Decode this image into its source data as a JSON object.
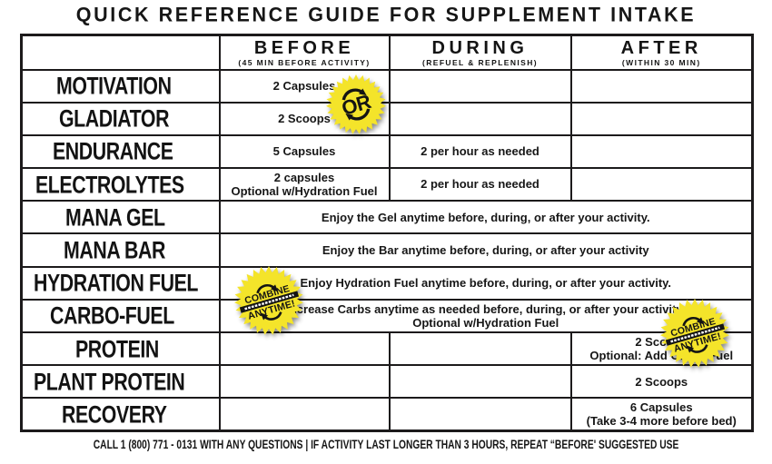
{
  "title": "QUICK REFERENCE GUIDE FOR SUPPLEMENT INTAKE",
  "footer": "CALL 1 (800) 771 - 0131 WITH ANY QUESTIONS | IF ACTIVITY LAST LONGER THAN 3 HOURS, REPEAT “BEFORE' SUGGESTED USE",
  "colors": {
    "highlight": "#f2e727",
    "border": "#1c1a1b",
    "text": "#141414",
    "badge_yellow": "#f4e42a",
    "badge_ink": "#141414"
  },
  "table": {
    "columns": [
      {
        "label": "BEFORE",
        "sub": "(45 MIN BEFORE ACTIVITY)"
      },
      {
        "label": "DURING",
        "sub": "(REFUEL & REPLENISH)"
      },
      {
        "label": "AFTER",
        "sub": "(WITHIN 30 MIN)"
      }
    ],
    "rows": [
      {
        "product": "MOTIVATION",
        "cells": [
          {
            "lines": [
              "2 Capsules"
            ],
            "yellow": true
          },
          {
            "lines": [],
            "yellow": false
          },
          {
            "lines": [],
            "yellow": false
          }
        ]
      },
      {
        "product": "GLADIATOR",
        "cells": [
          {
            "lines": [
              "2 Scoops"
            ],
            "yellow": true
          },
          {
            "lines": [],
            "yellow": false
          },
          {
            "lines": [],
            "yellow": false
          }
        ]
      },
      {
        "product": "ENDURANCE",
        "cells": [
          {
            "lines": [
              "5 Capsules"
            ],
            "yellow": true
          },
          {
            "lines": [
              "2 per hour as needed"
            ],
            "yellow": true
          },
          {
            "lines": [],
            "yellow": false
          }
        ]
      },
      {
        "product": "ELECTROLYTES",
        "cells": [
          {
            "lines": [
              "2 capsules",
              "Optional w/Hydration Fuel"
            ],
            "yellow": true
          },
          {
            "lines": [
              "2 per hour as needed"
            ],
            "yellow": true
          },
          {
            "lines": [],
            "yellow": false
          }
        ]
      },
      {
        "product": "MANA GEL",
        "cells": [
          {
            "span": 3,
            "lines": [
              "Enjoy the Gel anytime before, during, or after your activity."
            ],
            "yellow": true
          }
        ]
      },
      {
        "product": "MANA BAR",
        "cells": [
          {
            "span": 3,
            "lines": [
              "Enjoy the Bar anytime before, during, or after your activity"
            ],
            "yellow": true
          }
        ]
      },
      {
        "product": "HYDRATION FUEL",
        "cells": [
          {
            "span": 3,
            "lines": [
              "Enjoy Hydration Fuel anytime before, during, or after your activity."
            ],
            "yellow": true
          }
        ]
      },
      {
        "product": "CARBO-FUEL",
        "cells": [
          {
            "span": 3,
            "lines": [
              "Increase Carbs anytime as needed before, during, or after your activity.",
              "Optional w/Hydration Fuel"
            ],
            "yellow": true
          }
        ]
      },
      {
        "product": "PROTEIN",
        "cells": [
          {
            "lines": [],
            "yellow": false
          },
          {
            "lines": [],
            "yellow": false
          },
          {
            "lines": [
              "2 Scoops",
              "Optional: Add Carbo-Fuel"
            ],
            "yellow": true
          }
        ]
      },
      {
        "product": "PLANT PROTEIN",
        "cells": [
          {
            "lines": [],
            "yellow": false
          },
          {
            "lines": [],
            "yellow": false
          },
          {
            "lines": [
              "2 Scoops"
            ],
            "yellow": true
          }
        ]
      },
      {
        "product": "RECOVERY",
        "cells": [
          {
            "lines": [],
            "yellow": false
          },
          {
            "lines": [],
            "yellow": false
          },
          {
            "lines": [
              "6 Capsules",
              "(Take 3-4 more before bed)"
            ],
            "yellow": true
          }
        ]
      }
    ]
  },
  "badges": [
    {
      "name": "or-badge",
      "type": "or",
      "text": "OR"
    },
    {
      "name": "combine-badge-left",
      "type": "combine",
      "line1": "COMBINE",
      "line2": "ANYTIME!"
    },
    {
      "name": "combine-badge-right",
      "type": "combine",
      "line1": "COMBINE",
      "line2": "ANYTIME!"
    }
  ]
}
